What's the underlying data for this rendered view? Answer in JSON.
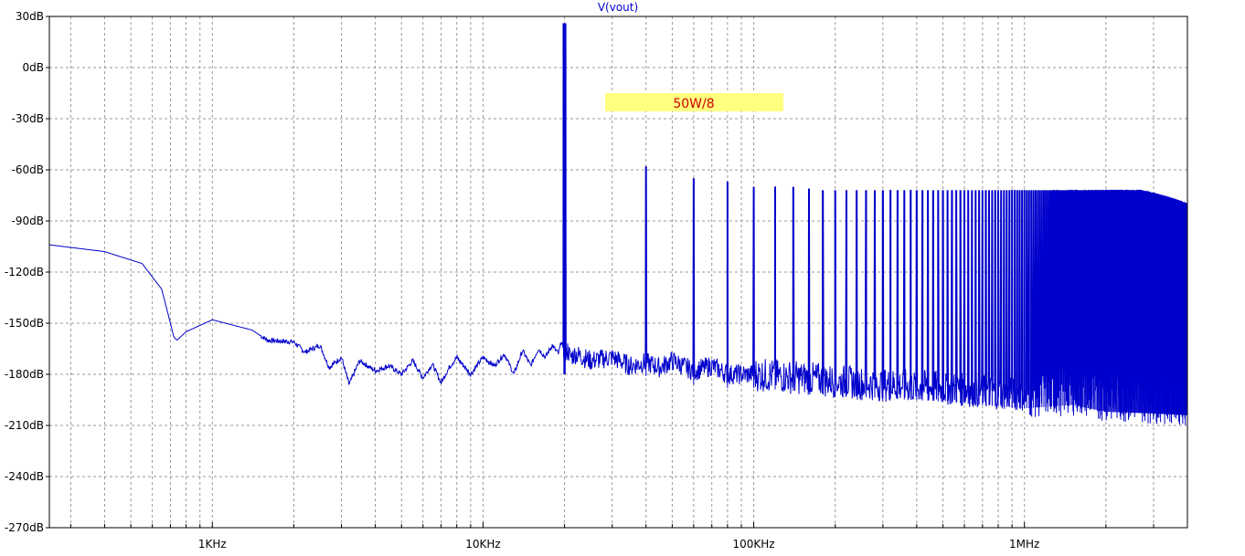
{
  "chart_data": {
    "type": "line",
    "title": "V(vout)",
    "annotation": "50W/8",
    "x_scale": "log",
    "xlim": [
      250,
      4000000
    ],
    "ylim": [
      -270,
      30
    ],
    "grid": true,
    "colors": {
      "trace": "#0000cc",
      "title": "#0000cc",
      "annotation_bg": "#ffff80",
      "annotation_text": "#cc0000",
      "grid": "#999999",
      "frame": "#000000"
    },
    "y_ticks": [
      {
        "value": 30,
        "label": "30dB"
      },
      {
        "value": 0,
        "label": "0dB"
      },
      {
        "value": -30,
        "label": "-30dB"
      },
      {
        "value": -60,
        "label": "-60dB"
      },
      {
        "value": -90,
        "label": "-90dB"
      },
      {
        "value": -120,
        "label": "-120dB"
      },
      {
        "value": -150,
        "label": "-150dB"
      },
      {
        "value": -180,
        "label": "-180dB"
      },
      {
        "value": -210,
        "label": "-210dB"
      },
      {
        "value": -240,
        "label": "-240dB"
      },
      {
        "value": -270,
        "label": "-270dB"
      }
    ],
    "x_ticks": [
      {
        "value": 1000,
        "label": "1KHz"
      },
      {
        "value": 10000,
        "label": "10KHz"
      },
      {
        "value": 100000,
        "label": "100KHz"
      },
      {
        "value": 1000000,
        "label": "1MHz"
      }
    ],
    "series": [
      {
        "x": [
          250,
          400,
          550,
          650,
          700,
          720,
          740,
          800,
          1000,
          1400,
          1600,
          2000,
          2200,
          2500,
          2700,
          3000,
          3200,
          3500,
          4000,
          4500,
          5000,
          5500,
          6000,
          6500,
          7000,
          7500,
          8000,
          9000,
          10000,
          11000,
          12000,
          13000,
          14000,
          15000,
          16000,
          17000,
          18000,
          19000,
          19500,
          20000,
          20500,
          21000,
          22000,
          25000,
          30000,
          35000,
          40000,
          45000,
          50000,
          60000,
          70000,
          80000,
          100000,
          150000,
          200000,
          300000,
          500000,
          700000,
          1000000,
          1500000,
          2000000,
          3000000,
          4000000
        ],
        "values": [
          -104,
          -108,
          -115,
          -130,
          -150,
          -158,
          -160,
          -155,
          -148,
          -154,
          -160,
          -161,
          -167,
          -163,
          -176,
          -170,
          -186,
          -172,
          -178,
          -175,
          -180,
          -172,
          -182,
          -174,
          -185,
          -176,
          -170,
          -180,
          -170,
          -175,
          -168,
          -180,
          -166,
          -175,
          -165,
          -170,
          -163,
          -168,
          -160,
          -172,
          -165,
          -170,
          -168,
          -172,
          -170,
          -175,
          -173,
          -176,
          -172,
          -178,
          -175,
          -180,
          -180,
          -182,
          -184,
          -186,
          -188,
          -190,
          -192,
          -190,
          -194,
          -195,
          -196
        ]
      }
    ],
    "harmonics_freq_hz": [
      20000,
      40000,
      60000,
      80000,
      100000,
      120000,
      140000,
      160000,
      180000,
      200000,
      220000,
      240000,
      260000,
      280000,
      300000,
      320000,
      340000,
      360000,
      380000,
      400000,
      420000,
      440000,
      460000,
      480000,
      500000
    ],
    "harmonics_peak_db": [
      26,
      -58,
      -65,
      -67,
      -70,
      -70,
      -70,
      -71,
      -72,
      -72,
      -72,
      -72,
      -72,
      -72,
      -72,
      -72,
      -72,
      -72,
      -72,
      -72,
      -72,
      -72,
      -72,
      -72,
      -72
    ],
    "harmonic_series_continues_to_hz": 4000000,
    "noise_floor_db_range": [
      -205,
      -175
    ]
  }
}
